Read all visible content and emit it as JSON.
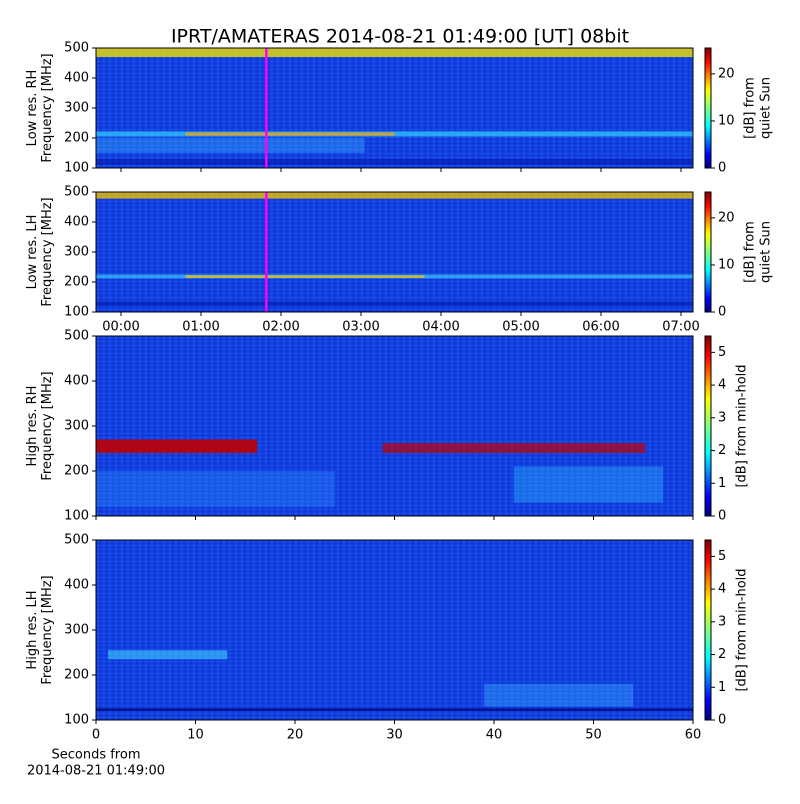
{
  "chart_data": [
    {
      "type": "spectrogram",
      "title": "IPRT/AMATERAS 2014-08-21 01:49:00 [UT]   08bit",
      "ylabel": [
        "Low res. RH",
        "Frequency [MHz]"
      ],
      "ylim": [
        100,
        500
      ],
      "yticks": [
        100,
        200,
        300,
        400,
        500
      ],
      "xlim": [
        -0.3125,
        7.15
      ],
      "cursor_x": 1.8167,
      "cursor_color": "#ff00ff",
      "colormap": "jet",
      "colorbar": {
        "label": [
          "[dB] from",
          "quiet Sun"
        ],
        "lim": [
          0,
          25.5
        ],
        "ticks": [
          0,
          10,
          20
        ]
      }
    },
    {
      "type": "spectrogram",
      "ylabel": [
        "Low res. LH",
        "Frequency [MHz]"
      ],
      "ylim": [
        100,
        500
      ],
      "yticks": [
        100,
        200,
        300,
        400,
        500
      ],
      "xlim": [
        -0.3125,
        7.15
      ],
      "xticks": [
        {
          "value": 0,
          "label": "00:00"
        },
        {
          "value": 1,
          "label": "01:00"
        },
        {
          "value": 2,
          "label": "02:00"
        },
        {
          "value": 3,
          "label": "03:00"
        },
        {
          "value": 4,
          "label": "04:00"
        },
        {
          "value": 5,
          "label": "05:00"
        },
        {
          "value": 6,
          "label": "06:00"
        },
        {
          "value": 7,
          "label": "07:00"
        }
      ],
      "cursor_x": 1.8167,
      "cursor_color": "#ff00ff",
      "colormap": "jet",
      "colorbar": {
        "label": [
          "[dB] from",
          "quiet Sun"
        ],
        "lim": [
          0,
          25.5
        ],
        "ticks": [
          0,
          10,
          20
        ]
      }
    },
    {
      "type": "spectrogram",
      "ylabel": [
        "High res. RH",
        "Frequency [MHz]"
      ],
      "ylim": [
        100,
        500
      ],
      "yticks": [
        100,
        200,
        300,
        400,
        500
      ],
      "xlim": [
        0,
        60
      ],
      "colormap": "jet",
      "colorbar": {
        "label": [
          "[dB] from min-hold"
        ],
        "lim": [
          0,
          5.5
        ],
        "ticks": [
          0,
          1,
          2,
          3,
          4,
          5
        ]
      }
    },
    {
      "type": "spectrogram",
      "ylabel": [
        "High res. LH",
        "Frequency [MHz]"
      ],
      "ylim": [
        100,
        500
      ],
      "yticks": [
        100,
        200,
        300,
        400,
        500
      ],
      "xlim": [
        0,
        60
      ],
      "xticks": [
        0,
        10,
        20,
        30,
        40,
        50,
        60
      ],
      "xlabel": [
        "Seconds from",
        "2014-08-21 01:49:00"
      ],
      "colormap": "jet",
      "colorbar": {
        "label": [
          "[dB] from min-hold"
        ],
        "lim": [
          0,
          5.5
        ],
        "ticks": [
          0,
          1,
          2,
          3,
          4,
          5
        ]
      }
    }
  ]
}
